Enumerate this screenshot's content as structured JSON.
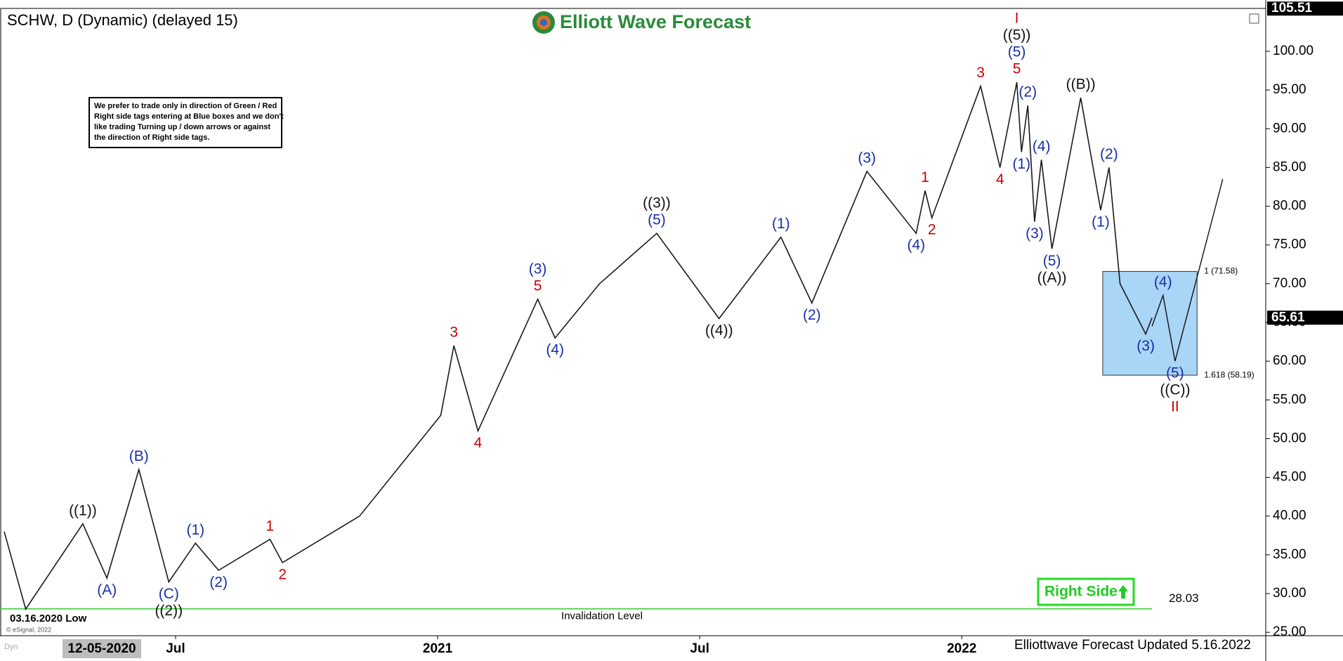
{
  "chart_data": {
    "type": "line",
    "title": "SCHW, D (Dynamic) (delayed 15)",
    "logo": "Elliott Wave Forecast",
    "note": [
      "We prefer to trade only in direction of Green / Red",
      "Right side tags entering at Blue boxes and we don't",
      "like trading Turning up / down arrows or against",
      "the direction of Right side tags."
    ],
    "low_label": "03.16.2020 Low",
    "copyright": "© eSignal, 2022",
    "cursor_date": "12-05-2020",
    "footer": "Elliottwave Forecast Updated 5.16.2022",
    "right_side": "Right Side",
    "dyn": "Dyn",
    "color": "#1a1a1a",
    "xlim": [
      2020.165,
      2022.58
    ],
    "ylim": [
      24.56,
      105.53
    ],
    "xticks": [
      {
        "value": 2020.5,
        "label": "Jul"
      },
      {
        "value": 2021,
        "label": "2021"
      },
      {
        "value": 2021.5,
        "label": "Jul"
      },
      {
        "value": 2022,
        "label": "2022"
      }
    ],
    "yticks": [
      {
        "value": 25,
        "label": "25.00"
      },
      {
        "value": 30,
        "label": "30.00"
      },
      {
        "value": 35,
        "label": "35.00"
      },
      {
        "value": 40,
        "label": "40.00"
      },
      {
        "value": 45,
        "label": "45.00"
      },
      {
        "value": 50,
        "label": "50.00"
      },
      {
        "value": 55,
        "label": "55.00"
      },
      {
        "value": 60,
        "label": "60.00"
      },
      {
        "value": 65,
        "label": "65.00"
      },
      {
        "value": 70,
        "label": "70.00"
      },
      {
        "value": 75,
        "label": "75.00"
      },
      {
        "value": 80,
        "label": "80.00"
      },
      {
        "value": 85,
        "label": "85.00"
      },
      {
        "value": 90,
        "label": "90.00"
      },
      {
        "value": 95,
        "label": "95.00"
      },
      {
        "value": 100,
        "label": "100.00"
      }
    ],
    "high": 105.51,
    "last_price": 65.61,
    "x": [
      2020.173,
      2020.214,
      2020.323,
      2020.369,
      2020.43,
      2020.487,
      2020.538,
      2020.582,
      2020.68,
      2020.704,
      2020.851,
      2021.006,
      2021.031,
      2021.077,
      2021.191,
      2021.224,
      2021.309,
      2021.418,
      2021.537,
      2021.655,
      2021.714,
      2021.819,
      2021.913,
      2021.93,
      2021.943,
      2022.036,
      2022.073,
      2022.105,
      2022.114,
      2022.126,
      2022.139,
      2022.152,
      2022.172,
      2022.227,
      2022.265,
      2022.281,
      2022.302,
      2022.351,
      2022.363
    ],
    "values": [
      38,
      28,
      39,
      32,
      46,
      31.5,
      36.5,
      33,
      37,
      34,
      40,
      53,
      62,
      51,
      68,
      63,
      70,
      76.5,
      65.5,
      76,
      67.5,
      84.5,
      76.5,
      82,
      78.5,
      95.5,
      85,
      96,
      87,
      93,
      78,
      86,
      74.5,
      94,
      79.5,
      85,
      70,
      63.5,
      65.61
    ],
    "labels": [
      null,
      null,
      [
        {
          "text": "((1))",
          "color": "#111111"
        }
      ],
      [
        {
          "text": "(A)",
          "color": "#1a2fa8"
        }
      ],
      [
        {
          "text": "(B)",
          "color": "#1a2fa8"
        }
      ],
      [
        {
          "text": "(C)",
          "color": "#1a2fa8"
        },
        {
          "text": "((2))",
          "color": "#111111"
        }
      ],
      [
        {
          "text": "(1)",
          "color": "#1a2fa8"
        }
      ],
      [
        {
          "text": "(2)",
          "color": "#1a2fa8"
        }
      ],
      [
        {
          "text": "1",
          "color": "#cc0000"
        }
      ],
      [
        {
          "text": "2",
          "color": "#cc0000"
        }
      ],
      null,
      null,
      [
        {
          "text": "3",
          "color": "#cc0000"
        }
      ],
      [
        {
          "text": "4",
          "color": "#cc0000"
        }
      ],
      [
        {
          "text": "5",
          "color": "#cc0000"
        },
        {
          "text": "(3)",
          "color": "#1a2fa8"
        }
      ],
      [
        {
          "text": "(4)",
          "color": "#1a2fa8"
        }
      ],
      null,
      [
        {
          "text": "(5)",
          "color": "#1a2fa8"
        },
        {
          "text": "((3))",
          "color": "#111111"
        }
      ],
      [
        {
          "text": "((4))",
          "color": "#111111"
        }
      ],
      [
        {
          "text": "(1)",
          "color": "#1a2fa8"
        }
      ],
      [
        {
          "text": "(2)",
          "color": "#1a2fa8"
        }
      ],
      [
        {
          "text": "(3)",
          "color": "#1a2fa8"
        }
      ],
      [
        {
          "text": "(4)",
          "color": "#1a2fa8"
        }
      ],
      [
        {
          "text": "1",
          "color": "#cc0000"
        }
      ],
      [
        {
          "text": "2",
          "color": "#cc0000"
        }
      ],
      [
        {
          "text": "3",
          "color": "#cc0000"
        }
      ],
      [
        {
          "text": "4",
          "color": "#cc0000"
        }
      ],
      [
        {
          "text": "5",
          "color": "#cc0000"
        },
        {
          "text": "(5)",
          "color": "#1a2fa8"
        },
        {
          "text": "((5))",
          "color": "#111111"
        },
        {
          "text": "I",
          "color": "#cc0000"
        }
      ],
      [
        {
          "text": "(1)",
          "color": "#1a2fa8"
        }
      ],
      [
        {
          "text": "(2)",
          "color": "#1a2fa8"
        }
      ],
      [
        {
          "text": "(3)",
          "color": "#1a2fa8"
        }
      ],
      [
        {
          "text": "(4)",
          "color": "#1a2fa8"
        }
      ],
      [
        {
          "text": "(5)",
          "color": "#1a2fa8"
        },
        {
          "text": "((A))",
          "color": "#111111"
        }
      ],
      [
        {
          "text": "((B))",
          "color": "#111111"
        }
      ],
      [
        {
          "text": "(1)",
          "color": "#1a2fa8"
        }
      ],
      [
        {
          "text": "(2)",
          "color": "#1a2fa8"
        }
      ],
      null,
      [
        {
          "text": "(3)",
          "color": "#1a2fa8"
        }
      ],
      null
    ],
    "projection": {
      "color": "#111111",
      "x": [
        2022.363,
        2022.384,
        2022.407,
        2022.498
      ],
      "values": [
        64.5,
        68.5,
        60,
        83.5
      ],
      "labels": [
        null,
        [
          {
            "text": "(4)",
            "color": "#1a2fa8"
          }
        ],
        [
          {
            "text": "(5)",
            "color": "#1a2fa8"
          },
          {
            "text": "((C))",
            "color": "#111111"
          },
          {
            "text": "II",
            "color": "#cc0000"
          }
        ],
        null
      ]
    },
    "box": {
      "x": [
        2022.269,
        2022.449
      ],
      "values": [
        71.58,
        58.19
      ],
      "labels": [
        "1 (71.58)",
        "1.618 (58.19)"
      ],
      "color": "#a9d5f7"
    },
    "invalidation": {
      "label": "Invalidation Level",
      "value": 28.03,
      "color": "#33cc33"
    }
  }
}
